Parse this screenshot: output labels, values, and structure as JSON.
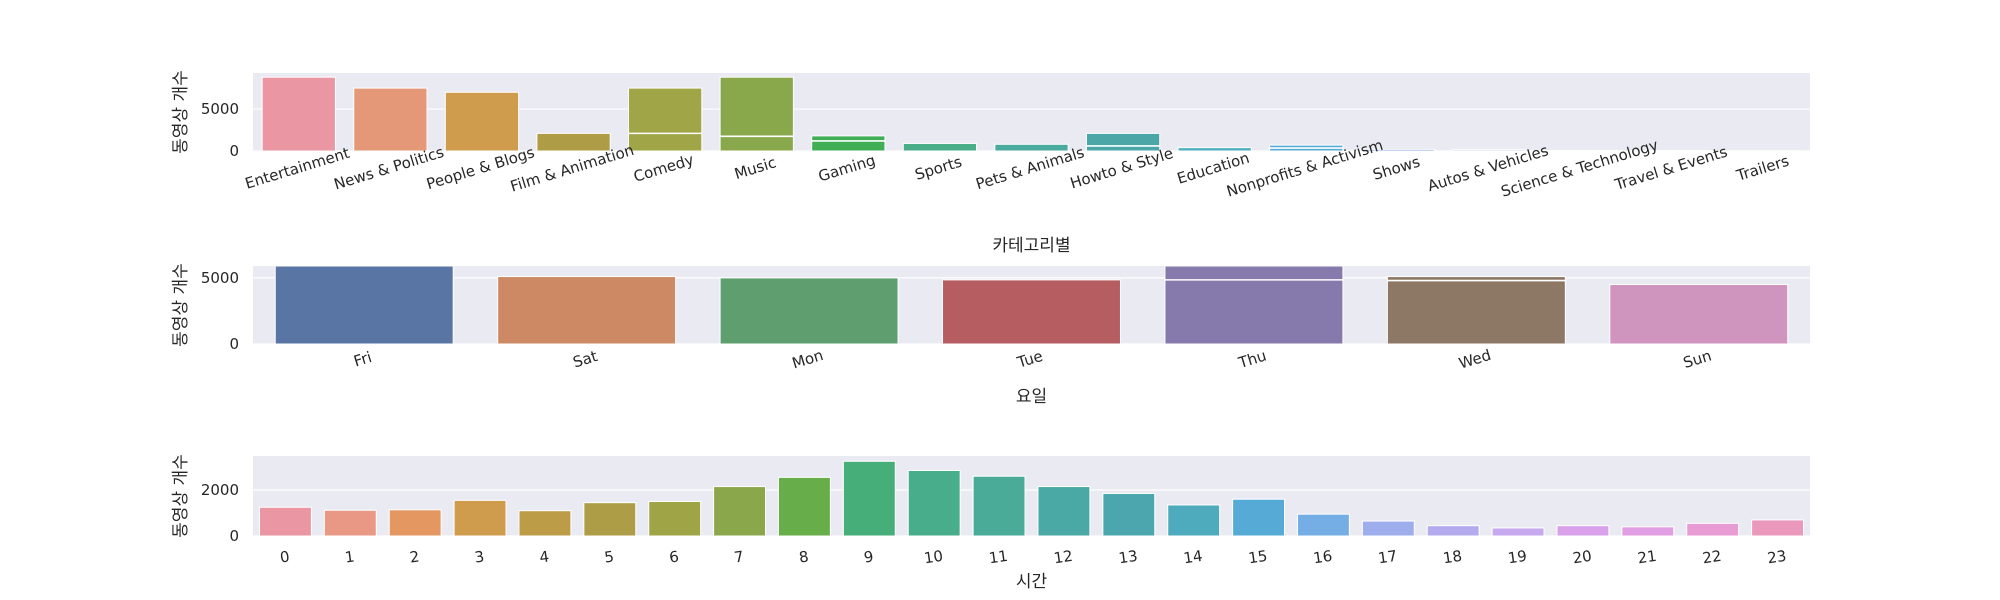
{
  "chart_data": [
    {
      "type": "bar",
      "xlabel": "카테고리별",
      "ylabel": "동영상 개수",
      "ylim": [
        0,
        9300
      ],
      "yticks": [
        0,
        5000
      ],
      "ytick_labels": [
        "0",
        "5000"
      ],
      "categories": [
        "Entertainment",
        "News & Politics",
        "People & Blogs",
        "Film & Animation",
        "Comedy",
        "Music",
        "Gaming",
        "Sports",
        "Pets & Animals",
        "Howto & Style",
        "Education",
        "Nonprofits & Activism",
        "Shows",
        "Autos & Vehicles",
        "Science & Technology",
        "Travel & Events",
        "Trailers"
      ],
      "values": [
        8800,
        7500,
        7000,
        2100,
        7500,
        8800,
        1800,
        900,
        800,
        2100,
        400,
        700,
        200,
        150,
        60,
        50,
        20
      ],
      "colors": [
        "#ea96a3",
        "#e59877",
        "#cf9b4c",
        "#ae9d46",
        "#a0a547",
        "#89a84b",
        "#3fae54",
        "#49ad87",
        "#4aaa9e",
        "#4ba6a8",
        "#4cafbd",
        "#56acd8",
        "#8eaee6",
        "#b0aeed",
        "#cba8ee",
        "#e09ce0",
        "#ea95c8"
      ],
      "overlay_lines": [
        {
          "category": "Comedy",
          "value": 2100
        },
        {
          "category": "Music",
          "value": 1750
        },
        {
          "category": "Gaming",
          "value": 1200
        },
        {
          "category": "Howto & Style",
          "value": 600
        },
        {
          "category": "Nonprofits & Activism",
          "value": 350
        }
      ],
      "grid": true
    },
    {
      "type": "bar",
      "xlabel": "요일",
      "ylabel": "동영상 개수",
      "ylim": [
        0,
        5900
      ],
      "yticks": [
        0,
        5000
      ],
      "ytick_labels": [
        "0",
        "5000"
      ],
      "categories": [
        "Fri",
        "Sat",
        "Mon",
        "Tue",
        "Thu",
        "Wed",
        "Sun"
      ],
      "values": [
        5900,
        5100,
        5000,
        4850,
        5900,
        5100,
        4500
      ],
      "colors": [
        "#5975a4",
        "#cc8963",
        "#5f9e6e",
        "#b55d60",
        "#857aab",
        "#8d7866",
        "#d095bf"
      ],
      "overlay_lines": [
        {
          "category": "Thu",
          "value": 4850
        },
        {
          "category": "Wed",
          "value": 4800
        }
      ],
      "grid": true
    },
    {
      "type": "bar",
      "xlabel": "시간",
      "ylabel": "동영상 개수",
      "ylim": [
        0,
        3480
      ],
      "yticks": [
        0,
        2000
      ],
      "ytick_labels": [
        "0",
        "2000"
      ],
      "categories": [
        "0",
        "1",
        "2",
        "3",
        "4",
        "5",
        "6",
        "7",
        "8",
        "9",
        "10",
        "11",
        "12",
        "13",
        "14",
        "15",
        "16",
        "17",
        "18",
        "19",
        "20",
        "21",
        "22",
        "23"
      ],
      "values": [
        1250,
        1120,
        1140,
        1550,
        1100,
        1450,
        1500,
        2150,
        2550,
        3250,
        2850,
        2600,
        2150,
        1850,
        1350,
        1600,
        950,
        650,
        450,
        350,
        450,
        400,
        550,
        700
      ],
      "colors": [
        "#ea96a3",
        "#e99885",
        "#e59762",
        "#cf9b4c",
        "#bd9c48",
        "#ad9d46",
        "#9fa446",
        "#8aa84b",
        "#67ae4a",
        "#45ae79",
        "#48ad8b",
        "#4aab99",
        "#4aa9a4",
        "#4ba7ad",
        "#4eabbd",
        "#55aad6",
        "#75aee5",
        "#9eadeb",
        "#b4abef",
        "#c6a9ef",
        "#d9a1ea",
        "#e19ee2",
        "#e99bd3",
        "#ea98bb"
      ],
      "grid": true
    }
  ]
}
